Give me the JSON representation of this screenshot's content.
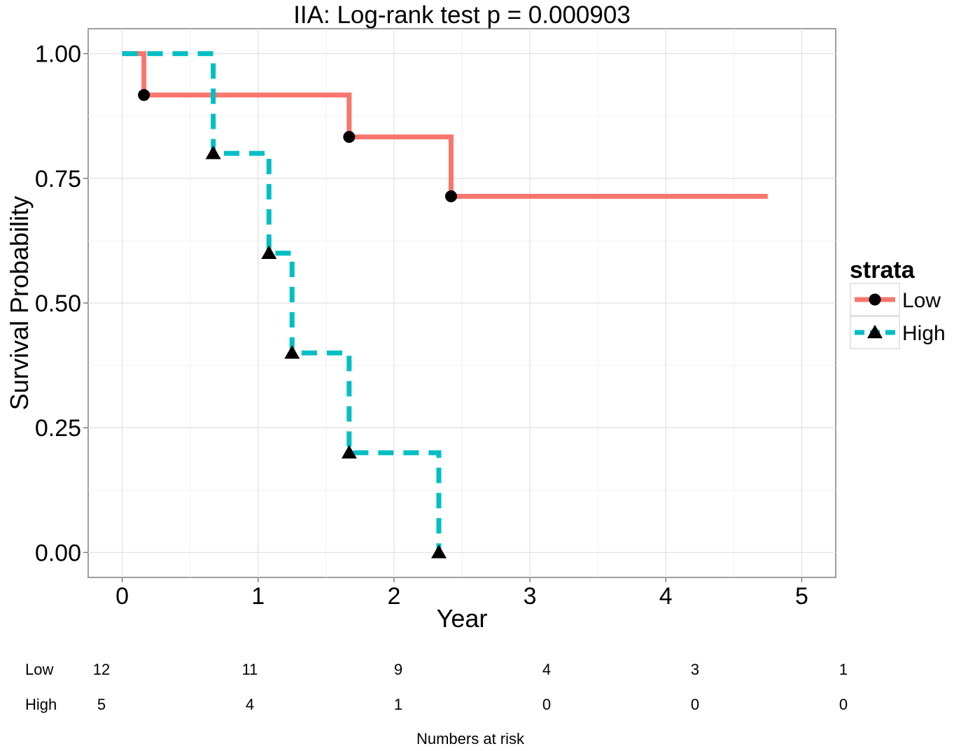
{
  "chart_data": {
    "type": "line",
    "title": "IIA: Log-rank test p = 0.000903",
    "xlabel": "Year",
    "ylabel": "Survival Probability",
    "xlim": [
      -0.25,
      5.25
    ],
    "ylim": [
      -0.05,
      1.05
    ],
    "x_ticks": [
      "0",
      "1",
      "2",
      "3",
      "4",
      "5"
    ],
    "y_ticks": [
      "0.00",
      "0.25",
      "0.50",
      "0.75",
      "1.00"
    ],
    "grid": true,
    "legend": {
      "title": "strata",
      "position": "right"
    },
    "series": [
      {
        "name": "Low",
        "color": "#F8766D",
        "line_style": "solid",
        "marker": "circle",
        "steps": [
          [
            0,
            1.0
          ],
          [
            0.16,
            0.917
          ],
          [
            1.67,
            0.833
          ],
          [
            2.42,
            0.714
          ],
          [
            4.75,
            0.714
          ]
        ],
        "markers": [
          [
            0.16,
            0.917
          ],
          [
            1.67,
            0.833
          ],
          [
            2.42,
            0.714
          ]
        ]
      },
      {
        "name": "High",
        "color": "#00BFC4",
        "line_style": "dashed",
        "marker": "triangle",
        "steps": [
          [
            0,
            1.0
          ],
          [
            0.67,
            0.8
          ],
          [
            1.08,
            0.6
          ],
          [
            1.25,
            0.4
          ],
          [
            1.67,
            0.2
          ],
          [
            2.33,
            0.0
          ]
        ],
        "markers": [
          [
            0.67,
            0.8
          ],
          [
            1.08,
            0.6
          ],
          [
            1.25,
            0.4
          ],
          [
            1.67,
            0.2
          ],
          [
            2.33,
            0.0
          ]
        ]
      }
    ],
    "risk_table": {
      "title": "Numbers at risk",
      "rows": [
        {
          "label": "Low",
          "values": [
            "12",
            "11",
            "9",
            "4",
            "3",
            "1"
          ]
        },
        {
          "label": "High",
          "values": [
            "5",
            "4",
            "1",
            "0",
            "0",
            "0"
          ]
        }
      ]
    }
  }
}
